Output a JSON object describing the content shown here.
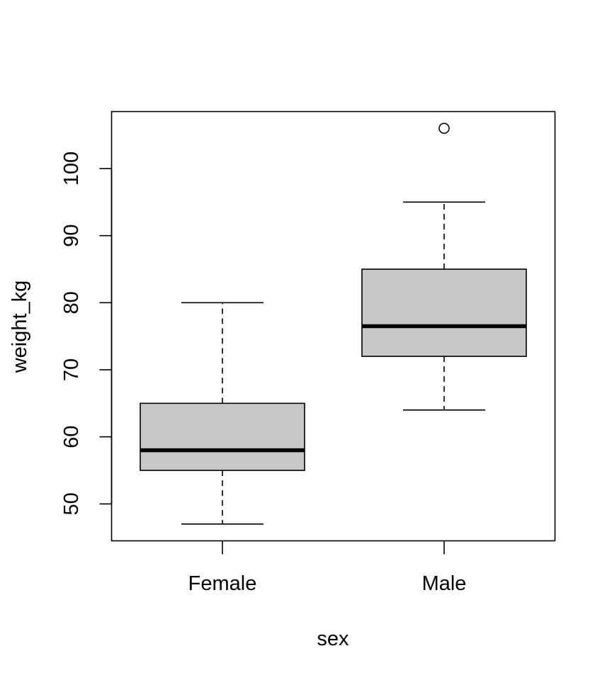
{
  "chart_data": {
    "type": "box",
    "xlabel": "sex",
    "ylabel": "weight_kg",
    "ylim": [
      44.5,
      108.5
    ],
    "yticks": [
      50,
      60,
      70,
      80,
      90,
      100
    ],
    "grid": false,
    "categories": [
      "Female",
      "Male"
    ],
    "boxes": [
      {
        "category": "Female",
        "whisker_low": 47,
        "q1": 55,
        "median": 58,
        "q3": 65,
        "whisker_high": 80,
        "outliers": []
      },
      {
        "category": "Male",
        "whisker_low": 64,
        "q1": 72,
        "median": 76.5,
        "q3": 85,
        "whisker_high": 95,
        "outliers": [
          106
        ]
      }
    ],
    "box_color": "#c8c8c8"
  }
}
